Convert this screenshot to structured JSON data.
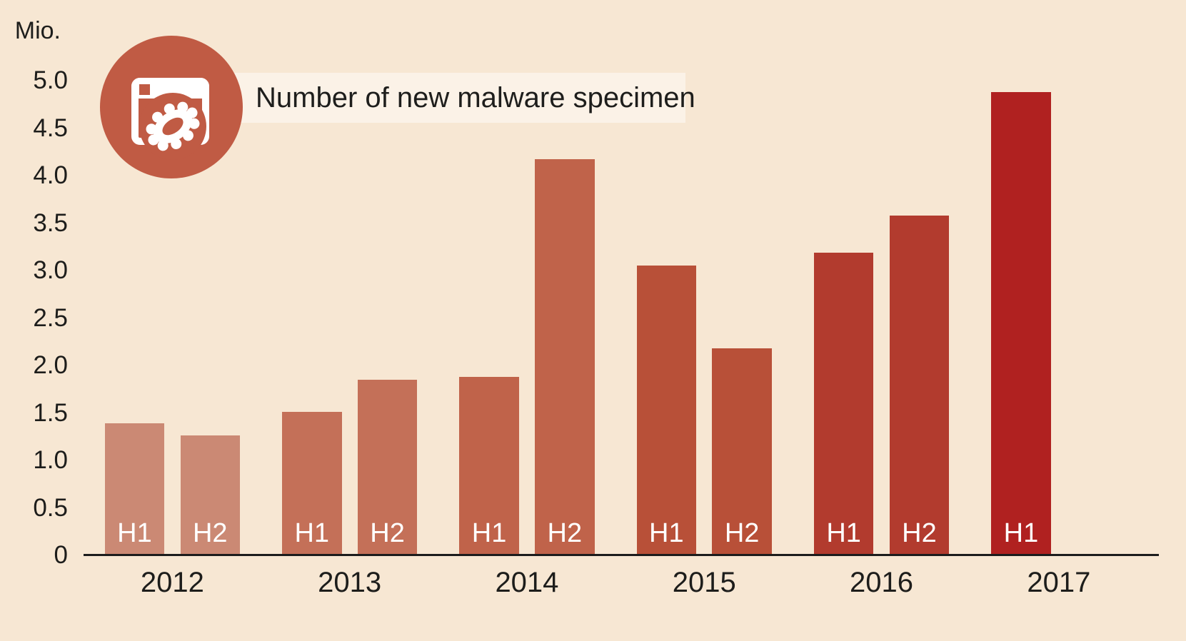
{
  "header": {
    "title": "Number of new malware specimen",
    "icon": "malware-window-icon"
  },
  "colors": {
    "background": "#f7e7d3",
    "title_band": "#fbf2e7",
    "icon_circle": "#c05b44",
    "axis_line": "#1c1c1c",
    "text": "#1d1d1b",
    "bar_label_text": "#ffffff",
    "year_colors": [
      "#cb8974",
      "#c47058",
      "#c0634a",
      "#b85038",
      "#b23b2e",
      "#b02120"
    ]
  },
  "chart_data": {
    "type": "bar",
    "title": "Number of new malware specimen",
    "ylabel": "Mio.",
    "xlabel": "",
    "ylim": [
      0,
      5
    ],
    "grid": false,
    "legend": "none",
    "yticks": [
      "0",
      "0.5",
      "1.0",
      "1.5",
      "2.0",
      "2.5",
      "3.0",
      "3.5",
      "4.0",
      "4.5",
      "5.0"
    ],
    "groups": [
      {
        "year": "2012",
        "color": "#cb8974",
        "bars": [
          {
            "label": "H1",
            "value": 1.39
          },
          {
            "label": "H2",
            "value": 1.26
          }
        ]
      },
      {
        "year": "2013",
        "color": "#c47058",
        "bars": [
          {
            "label": "H1",
            "value": 1.51
          },
          {
            "label": "H2",
            "value": 1.85
          }
        ]
      },
      {
        "year": "2014",
        "color": "#c0634a",
        "bars": [
          {
            "label": "H1",
            "value": 1.88
          },
          {
            "label": "H2",
            "value": 4.17
          }
        ]
      },
      {
        "year": "2015",
        "color": "#b85038",
        "bars": [
          {
            "label": "H1",
            "value": 3.05
          },
          {
            "label": "H2",
            "value": 2.18
          }
        ]
      },
      {
        "year": "2016",
        "color": "#b23b2e",
        "bars": [
          {
            "label": "H1",
            "value": 3.19
          },
          {
            "label": "H2",
            "value": 3.58
          }
        ]
      },
      {
        "year": "2017",
        "color": "#b02120",
        "bars": [
          {
            "label": "H1",
            "value": 4.88
          }
        ]
      }
    ]
  }
}
